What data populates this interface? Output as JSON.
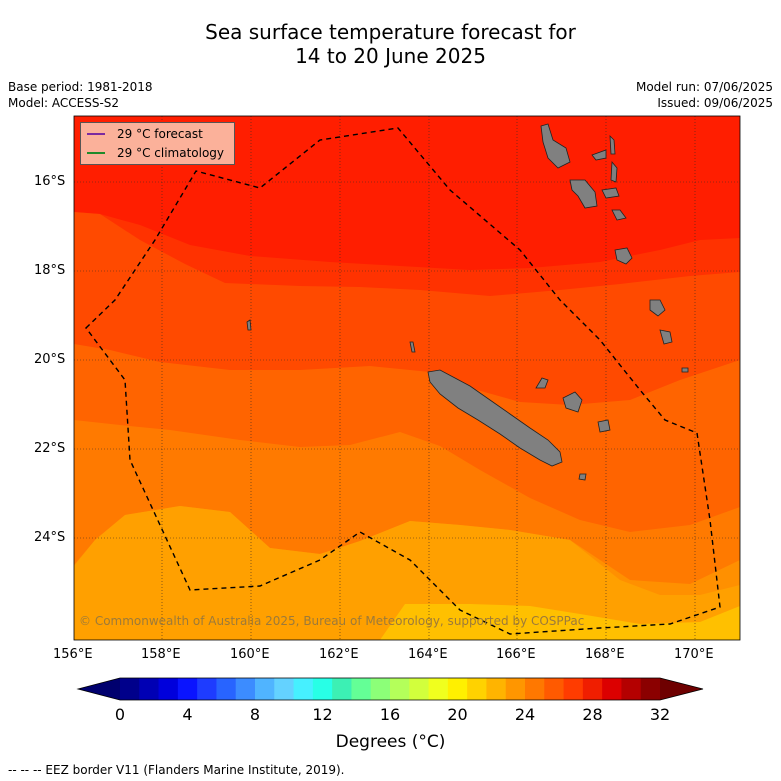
{
  "title_line1": "Sea surface temperature forecast for",
  "title_line2": "14 to 20 June 2025",
  "meta_left": [
    "Base period: 1981-2018",
    "Model: ACCESS-S2"
  ],
  "meta_right": [
    "Model run: 07/06/2025",
    "Issued: 09/06/2025"
  ],
  "legend": [
    {
      "label": "29 °C  forecast",
      "color": "#7b2aa0"
    },
    {
      "label": "29 °C  climatology",
      "color": "#1f8a2a"
    }
  ],
  "lat_labels": [
    "16°S",
    "18°S",
    "20°S",
    "22°S",
    "24°S"
  ],
  "lon_labels": [
    "156°E",
    "158°E",
    "160°E",
    "162°E",
    "164°E",
    "166°E",
    "168°E",
    "170°E"
  ],
  "copyright": "© Commonwealth of Australia 2025, Bureau of Meteorology, supported by COSPPac",
  "colorbar": {
    "ticks": [
      "0",
      "4",
      "8",
      "12",
      "16",
      "20",
      "24",
      "28",
      "32"
    ],
    "label": "Degrees (°C)",
    "colors": [
      "#00008b",
      "#0000b4",
      "#0000dc",
      "#0a14ff",
      "#1e3cff",
      "#2864ff",
      "#3c8cff",
      "#50b4ff",
      "#64d2ff",
      "#46f0ff",
      "#28ffe6",
      "#3cf0b4",
      "#64ff96",
      "#8cff78",
      "#b4ff5a",
      "#d2ff3c",
      "#f0ff1e",
      "#fff000",
      "#ffd200",
      "#ffb400",
      "#ff9600",
      "#ff7800",
      "#ff5a00",
      "#ff3c00",
      "#f01e00",
      "#dc0000",
      "#b40000",
      "#8b0000"
    ],
    "under_color": "#00006e",
    "over_color": "#6e0000"
  },
  "footnote": "--  --  -- EEZ border V11 (Flanders Marine Institute, 2019).",
  "sst_band_colors": [
    "#ff1e00",
    "#ff3200",
    "#ff4a00",
    "#ff6400",
    "#ff7a00",
    "#ff9000",
    "#ffa000",
    "#ffb000",
    "#ffc000"
  ]
}
